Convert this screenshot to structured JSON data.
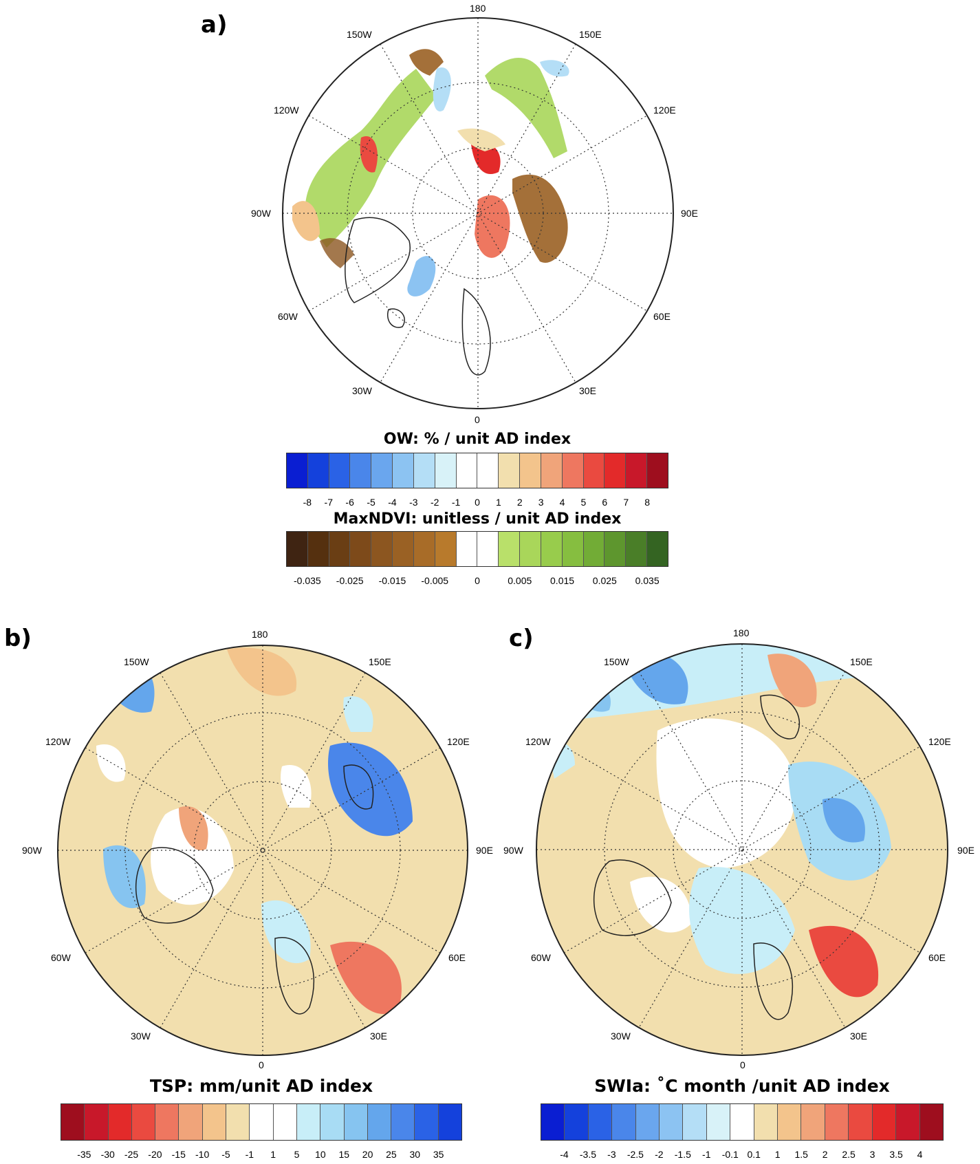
{
  "panels": {
    "a": {
      "label": "a)",
      "lon_labels": {
        "top": "180",
        "bottom": "0",
        "left": "90W",
        "right": "90E",
        "w150": "150W",
        "e150": "150E",
        "w120": "120W",
        "e120": "120E",
        "w60": "60W",
        "e60": "60E",
        "w30": "30W",
        "e30": "30E"
      },
      "colorbars": [
        {
          "title": "OW: % / unit AD index",
          "colors": [
            "#0a1ed2",
            "#1441dc",
            "#2a62e6",
            "#4a86ea",
            "#6aa6ee",
            "#8cc3f2",
            "#b4def6",
            "#d8f2f8",
            "#ffffff",
            "#ffffff",
            "#f2dfae",
            "#f3c48c",
            "#f0a47a",
            "#ee7760",
            "#ea4a40",
            "#e32a2a",
            "#c8182a",
            "#9e0e1e"
          ],
          "ticks": [
            "-8",
            "-7",
            "-6",
            "-5",
            "-4",
            "-3",
            "-2",
            "-1",
            "0",
            "1",
            "2",
            "3",
            "4",
            "5",
            "6",
            "7",
            "8"
          ]
        },
        {
          "title": "MaxNDVI: unitless / unit AD index",
          "colors": [
            "#3f2412",
            "#55300f",
            "#6a3e14",
            "#7d4a1a",
            "#8c5620",
            "#9a6124",
            "#a86c28",
            "#b87a2c",
            "#ffffff",
            "#ffffff",
            "#b9e06a",
            "#a9d65a",
            "#98cc4c",
            "#86be40",
            "#72ac36",
            "#5e962e",
            "#4a7e28",
            "#346422"
          ],
          "ticks": [
            "-0.035",
            "-0.025",
            "-0.015",
            "-0.005",
            "0",
            "0.005",
            "0.015",
            "0.025",
            "0.035"
          ]
        }
      ]
    },
    "b": {
      "label": "b)",
      "lon_labels": {
        "top": "180",
        "bottom": "0",
        "left": "90W",
        "right": "90E",
        "w150": "150W",
        "e150": "150E",
        "w120": "120W",
        "e120": "120E",
        "w60": "60W",
        "e60": "60E",
        "w30": "30W",
        "e30": "30E"
      },
      "colorbar": {
        "title": "TSP: mm/unit AD index",
        "colors": [
          "#9e0e1e",
          "#c8182a",
          "#e32a2a",
          "#ea4a40",
          "#ee7760",
          "#f0a47a",
          "#f3c48c",
          "#f2dfae",
          "#ffffff",
          "#ffffff",
          "#c8eef8",
          "#a8dcf4",
          "#86c4f0",
          "#64a6ec",
          "#4a86ea",
          "#2a62e6",
          "#1441dc"
        ],
        "ticks": [
          "-35",
          "-30",
          "-25",
          "-20",
          "-15",
          "-10",
          "-5",
          "-1",
          "1",
          "5",
          "10",
          "15",
          "20",
          "25",
          "30",
          "35"
        ]
      }
    },
    "c": {
      "label": "c)",
      "lon_labels": {
        "top": "180",
        "bottom": "0",
        "left": "90W",
        "right": "90E",
        "w150": "150W",
        "e150": "150E",
        "w120": "120W",
        "e120": "120E",
        "w60": "60W",
        "e60": "60E",
        "w30": "30W",
        "e30": "30E"
      },
      "colorbar": {
        "title": "SWIa: ˚C month /unit AD index",
        "colors": [
          "#0a1ed2",
          "#1441dc",
          "#2a62e6",
          "#4a86ea",
          "#6aa6ee",
          "#8cc3f2",
          "#b4def6",
          "#d8f2f8",
          "#ffffff",
          "#f2dfae",
          "#f3c48c",
          "#f0a47a",
          "#ee7760",
          "#ea4a40",
          "#e32a2a",
          "#c8182a",
          "#9e0e1e"
        ],
        "ticks": [
          "-4",
          "-3.5",
          "-3",
          "-2.5",
          "-2",
          "-1.5",
          "-1",
          "-0.1",
          "0.1",
          "1",
          "1.5",
          "2",
          "2.5",
          "3",
          "3.5",
          "4"
        ]
      }
    }
  }
}
